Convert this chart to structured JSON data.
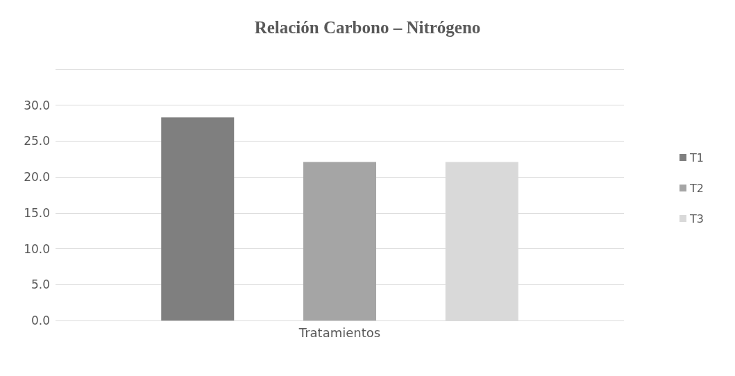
{
  "chart_data": {
    "type": "bar",
    "title": "Relación Carbono – Nitrógeno",
    "categories": [
      "Tratamientos"
    ],
    "series": [
      {
        "name": "T1",
        "color": "#7f7f7f",
        "values": [
          28.3
        ]
      },
      {
        "name": "T2",
        "color": "#a5a5a5",
        "values": [
          22.1
        ]
      },
      {
        "name": "T3",
        "color": "#d9d9d9",
        "values": [
          22.1
        ]
      }
    ],
    "ylim": [
      0,
      35
    ],
    "yticks": [
      {
        "value": 0,
        "label": "0.0"
      },
      {
        "value": 5,
        "label": "5.0"
      },
      {
        "value": 10,
        "label": "10.0"
      },
      {
        "value": 15,
        "label": "15.0"
      },
      {
        "value": 20,
        "label": "20.0"
      },
      {
        "value": 25,
        "label": "25.0"
      },
      {
        "value": 30,
        "label": "30.0"
      },
      {
        "value": 35,
        "label": null
      }
    ],
    "grid": "y",
    "legend": "right"
  }
}
